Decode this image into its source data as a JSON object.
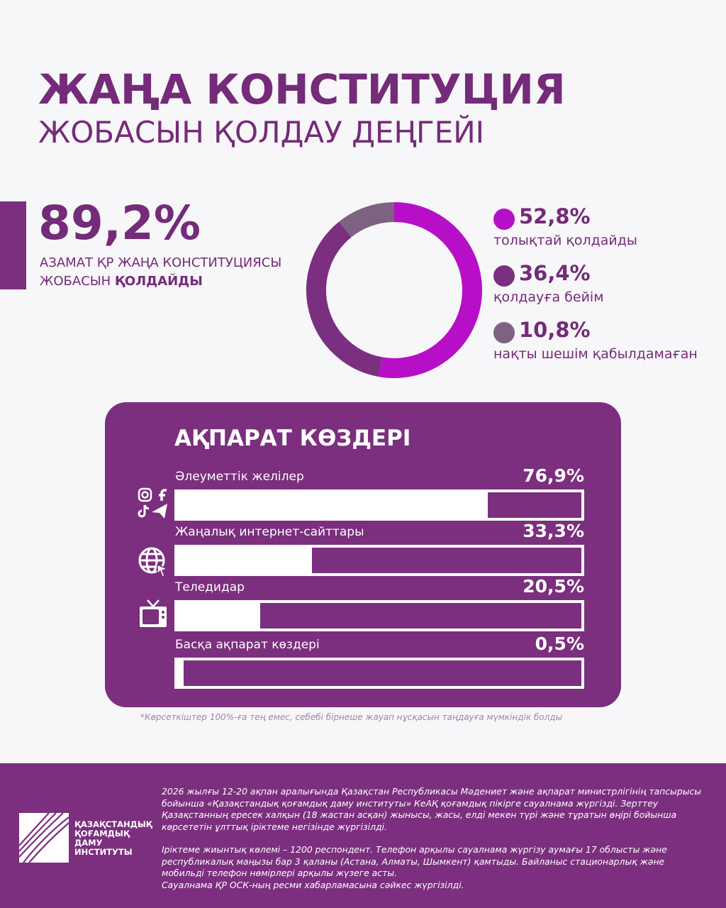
{
  "header": {
    "title": "ЖАҢА КОНСТИТУЦИЯ",
    "subtitle": "ЖОБАСЫН ҚОЛДАУ ДЕҢГЕЙІ"
  },
  "headline": {
    "value": "89,2%",
    "caption_line1": "АЗАМАТ ҚР ЖАҢА КОНСТИТУЦИЯСЫ",
    "caption_line2_prefix": "ЖОБАСЫН ",
    "caption_line2_bold": "ҚОЛДАЙДЫ"
  },
  "chart_data": [
    {
      "type": "pie",
      "variant": "donut",
      "start": "top, clockwise",
      "legend_position": "right",
      "slices": [
        {
          "label": "толықтай қолдайды",
          "value": 52.8,
          "display": "52,8%",
          "color": "#b70fc7"
        },
        {
          "label": "қолдауға бейім",
          "value": 36.4,
          "display": "36,4%",
          "color": "#7a2f80"
        },
        {
          "label": "нақты шешім қабылдамаған",
          "value": 10.8,
          "display": "10,8%",
          "color": "#7d6282"
        }
      ]
    },
    {
      "type": "bar",
      "orientation": "horizontal",
      "title": "АҚПАРАТ КӨЗДЕРІ",
      "xlim": [
        0,
        100
      ],
      "categories": [
        "Әлеуметтік желілер",
        "Жаңалық интернет-сайттары",
        "Теледидар",
        "Басқа ақпарат көздері"
      ],
      "values": [
        76.9,
        33.3,
        20.5,
        0.5
      ],
      "value_labels": [
        "76,9%",
        "33,3%",
        "20,5%",
        "0,5%"
      ],
      "icons": [
        "social-media-icon",
        "globe-cursor-icon",
        "tv-icon",
        ""
      ],
      "bar_color": "#ffffff",
      "track_color": "#7b2f7e"
    }
  ],
  "footnote": "*Көрсеткіштер 100%-ға тең емес, себебі бірнеше жауап нұсқасын таңдауға мүмкіндік болды",
  "footer": {
    "paragraph1": "2026 жылғы 12-20 ақпан аралығында Қазақстан Республикасы Мәдениет және ақпарат министрлігінің тапсырысы бойынша «Қазақстандық қоғамдық даму институты» КеАҚ қоғамдық пікірге сауалнама жүргізді. Зерттеу Қазақстанның ересек халқын (18 жастан асқан) жынысы, жасы, елді мекен түрі және тұратын өңірі бойынша көрсететін ұлттық іріктеме негізінде жүргізілді.",
    "paragraph2": "Іріктеме жиынтық көлемі – 1200 респондент. Телефон арқылы сауалнама жүргізу аумағы 17 облысты және республикалық маңызы бар 3 қаланы (Астана, Алматы, Шымкент) қамтыды. Байланыс стационарлық және мобильді телефон нөмірлері арқылы жүзеге асты.",
    "paragraph3": "Сауалнама ҚР ОСК-ның ресми хабарламасына сәйкес жүргізілді.",
    "logo": {
      "line1": "ҚАЗАҚСТАНДЫҚ",
      "line2": "ҚОҒАМДЫҚ",
      "line3": "ДАМУ",
      "line4": "ИНСТИТУТЫ"
    }
  },
  "colors": {
    "brand_purple": "#7b2f7e",
    "title_purple": "#742b79",
    "background": "#f7f6f8"
  }
}
